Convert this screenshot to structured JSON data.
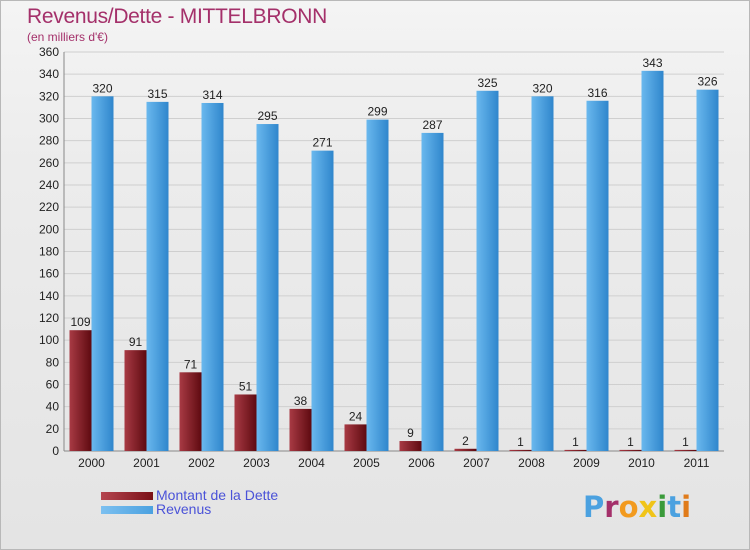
{
  "title": "Revenus/Dette - MITTELBRONN",
  "subtitle": "(en milliers d'€)",
  "legend": {
    "debt": "Montant de la Dette",
    "revenue": "Revenus"
  },
  "brand": {
    "text": "Proxiti",
    "letters": [
      {
        "ch": "P",
        "color": "#4ba1e0"
      },
      {
        "ch": "r",
        "color": "#a4306a"
      },
      {
        "ch": "o",
        "color": "#f29a1e"
      },
      {
        "ch": "x",
        "color": "#f0c419"
      },
      {
        "ch": "i",
        "color": "#3a9a3a"
      },
      {
        "ch": "t",
        "color": "#4ba1e0"
      },
      {
        "ch": "i",
        "color": "#e07b1a"
      }
    ]
  },
  "colors": {
    "debt": "#7a0f16",
    "debt_light": "#b54650",
    "revenue": "#4ba1e0",
    "revenue_light": "#7cc0f0",
    "title": "#a4306a",
    "legend_text": "#4a52d8"
  },
  "chart_data": {
    "type": "bar",
    "title": "Revenus/Dette - MITTELBRONN",
    "subtitle": "(en milliers d'€)",
    "categories": [
      "2000",
      "2001",
      "2002",
      "2003",
      "2004",
      "2005",
      "2006",
      "2007",
      "2008",
      "2009",
      "2010",
      "2011"
    ],
    "series": [
      {
        "name": "Montant de la Dette",
        "values": [
          109,
          91,
          71,
          51,
          38,
          24,
          9,
          2,
          1,
          1,
          1,
          1
        ]
      },
      {
        "name": "Revenus",
        "values": [
          320,
          315,
          314,
          295,
          271,
          299,
          287,
          325,
          320,
          316,
          343,
          326
        ]
      }
    ],
    "ylim": [
      0,
      360
    ],
    "yticks": [
      0,
      20,
      40,
      60,
      80,
      100,
      120,
      140,
      160,
      180,
      200,
      220,
      240,
      260,
      280,
      300,
      320,
      340,
      360
    ],
    "grid": true,
    "legend_position": "bottom-left"
  }
}
